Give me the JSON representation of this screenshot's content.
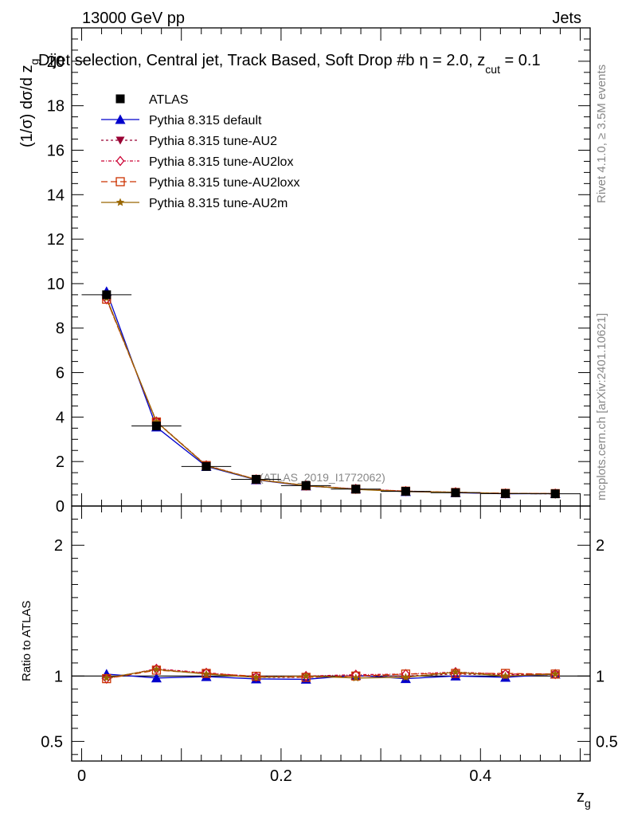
{
  "header": {
    "left": "13000 GeV pp",
    "right": "Jets",
    "plot_title": "Dijet selection, Central jet, Track Based, Soft Drop #b",
    "title_tail": "η = 2.0, z",
    "title_tail_sub": "cut",
    "title_tail_end": " = 0.1"
  },
  "side_labels": {
    "rivet": "Rivet 4.1.0, ≥ 3.5M events",
    "mcplots": "mcplots.cern.ch [arXiv:2401.10621]"
  },
  "chart_data": {
    "type": "line",
    "title": "Dijet selection, Central jet, Track Based, Soft Drop #b η = 2.0, z_cut = 0.1",
    "analysis_label": "(ATLAS_2019_I1772062)",
    "xlabel": "z",
    "xlabel_sub": "g",
    "ylabel": "(1/σ) dσ/d z",
    "ylabel_sub": "g",
    "ratio_ylabel": "Ratio to ATLAS",
    "xlim": [
      -0.01,
      0.51
    ],
    "ylim": [
      0,
      21.5
    ],
    "ratio_ylim": [
      0.35,
      2.3
    ],
    "x_ticks": [
      0,
      0.2,
      0.4
    ],
    "x_tick_labels": [
      "0",
      "0.2",
      "0.4"
    ],
    "y_ticks": [
      0,
      2,
      4,
      6,
      8,
      10,
      12,
      14,
      16,
      18,
      20
    ],
    "y_tick_labels": [
      "0",
      "2",
      "4",
      "6",
      "8",
      "10",
      "12",
      "14",
      "16",
      "18",
      "20"
    ],
    "ratio_ticks": [
      0.5,
      1,
      2
    ],
    "ratio_tick_labels": [
      "0.5",
      "1",
      "2"
    ],
    "x": [
      0.025,
      0.075,
      0.125,
      0.175,
      0.225,
      0.275,
      0.325,
      0.375,
      0.425,
      0.475
    ],
    "series": [
      {
        "name": "ATLAS",
        "color": "#000000",
        "marker": "square",
        "dash": "",
        "values": [
          9.5,
          3.6,
          1.78,
          1.2,
          0.92,
          0.76,
          0.66,
          0.6,
          0.56,
          0.55
        ]
      },
      {
        "name": "Pythia 8.315 default",
        "color": "#0000cc",
        "marker": "triangle-up",
        "dash": "",
        "values": [
          9.65,
          3.55,
          1.78,
          1.18,
          0.9,
          0.77,
          0.65,
          0.6,
          0.55,
          0.56
        ]
      },
      {
        "name": "Pythia 8.315 tune-AU2",
        "color": "#990033",
        "marker": "triangle-down",
        "dash": "3,3",
        "values": [
          9.35,
          3.78,
          1.82,
          1.19,
          0.91,
          0.76,
          0.66,
          0.61,
          0.57,
          0.55
        ]
      },
      {
        "name": "Pythia 8.315 tune-AU2lox",
        "color": "#cc0033",
        "marker": "diamond",
        "dash": "4,2,1,2",
        "values": [
          9.3,
          3.8,
          1.83,
          1.2,
          0.92,
          0.77,
          0.67,
          0.62,
          0.57,
          0.56
        ]
      },
      {
        "name": "Pythia 8.315 tune-AU2loxx",
        "color": "#cc3300",
        "marker": "square-open",
        "dash": "8,4",
        "values": [
          9.3,
          3.78,
          1.82,
          1.2,
          0.91,
          0.76,
          0.67,
          0.61,
          0.57,
          0.56
        ]
      },
      {
        "name": "Pythia 8.315 tune-AU2m",
        "color": "#996600",
        "marker": "star",
        "dash": "",
        "values": [
          9.35,
          3.79,
          1.81,
          1.19,
          0.92,
          0.75,
          0.65,
          0.62,
          0.56,
          0.56
        ]
      }
    ],
    "ratio_series": [
      {
        "name": "Pythia 8.315 default",
        "values": [
          1.015,
          0.985,
          0.995,
          0.978,
          0.975,
          1.005,
          0.98,
          1.0,
          0.99,
          1.015
        ]
      },
      {
        "name": "Pythia 8.315 tune-AU2",
        "values": [
          0.985,
          1.05,
          1.02,
          0.99,
          0.99,
          1.0,
          1.0,
          1.015,
          1.01,
          1.01
        ]
      },
      {
        "name": "Pythia 8.315 tune-AU2lox",
        "values": [
          0.98,
          1.055,
          1.025,
          0.995,
          1.0,
          1.01,
          1.015,
          1.03,
          1.015,
          1.015
        ]
      },
      {
        "name": "Pythia 8.315 tune-AU2loxx",
        "values": [
          0.98,
          1.045,
          1.02,
          0.998,
          0.99,
          1.0,
          1.015,
          1.02,
          1.02,
          1.015
        ]
      },
      {
        "name": "Pythia 8.315 tune-AU2m",
        "values": [
          0.985,
          1.05,
          1.015,
          0.99,
          1.0,
          0.985,
          0.99,
          1.03,
          1.0,
          1.015
        ]
      }
    ],
    "legend_position": "top-left"
  }
}
